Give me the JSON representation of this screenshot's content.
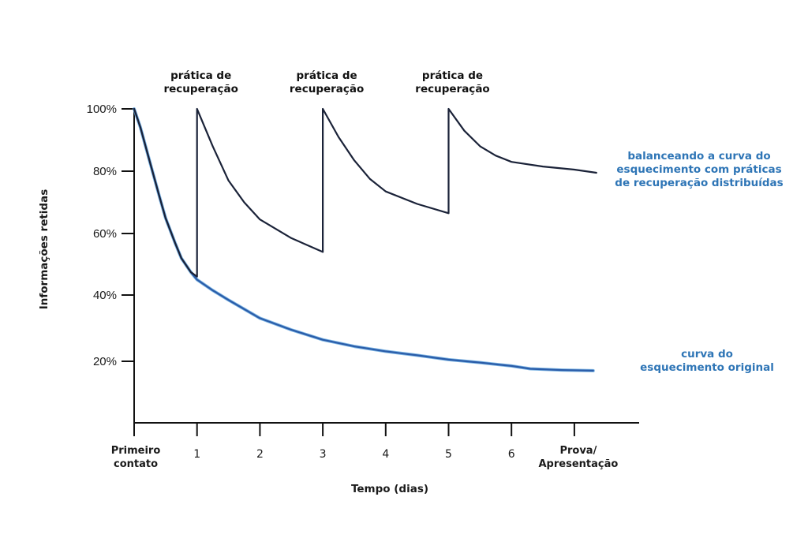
{
  "chart_data": {
    "type": "line",
    "title": "",
    "xlabel": "Tempo (dias)",
    "ylabel": "Informações retidas",
    "x_ticks": [
      {
        "value": 0,
        "label": [
          "Primeiro",
          "contato"
        ]
      },
      {
        "value": 1,
        "label": [
          "1"
        ]
      },
      {
        "value": 2,
        "label": [
          "2"
        ]
      },
      {
        "value": 3,
        "label": [
          "3"
        ]
      },
      {
        "value": 4,
        "label": [
          "4"
        ]
      },
      {
        "value": 5,
        "label": [
          "5"
        ]
      },
      {
        "value": 6,
        "label": [
          "6"
        ]
      },
      {
        "value": 7,
        "label": [
          "Prova/",
          "Apresentação"
        ]
      }
    ],
    "y_ticks": [
      {
        "value": 20,
        "label": "20%"
      },
      {
        "value": 40,
        "label": "40%"
      },
      {
        "value": 60,
        "label": "60%"
      },
      {
        "value": 80,
        "label": "80%"
      },
      {
        "value": 100,
        "label": "100%"
      }
    ],
    "xlim": [
      0,
      8
    ],
    "ylim": [
      0,
      100
    ],
    "grid": false,
    "series": [
      {
        "name": "curva do esquecimento original",
        "label_lines": [
          "curva do",
          "esquecimento original"
        ],
        "color": "#2a5ca8",
        "label_color": "#2e75b6",
        "points": [
          [
            0,
            100
          ],
          [
            0.1,
            94
          ],
          [
            0.25,
            83
          ],
          [
            0.4,
            72
          ],
          [
            0.5,
            65
          ],
          [
            0.65,
            57
          ],
          [
            0.75,
            52
          ],
          [
            0.9,
            47.5
          ],
          [
            1,
            45
          ],
          [
            1.25,
            41.5
          ],
          [
            1.5,
            38.5
          ],
          [
            2,
            33
          ],
          [
            2.5,
            29.5
          ],
          [
            3,
            26.5
          ],
          [
            3.5,
            24.5
          ],
          [
            4,
            23
          ],
          [
            4.5,
            21.8
          ],
          [
            5,
            20.5
          ],
          [
            5.5,
            19.6
          ],
          [
            6,
            18.5
          ],
          [
            6.3,
            17.6
          ],
          [
            6.8,
            17.2
          ],
          [
            7.3,
            17
          ]
        ]
      },
      {
        "name": "balanceando a curva do esquecimento com práticas de recuperação distribuídas",
        "label_lines": [
          "balanceando a curva do",
          "esquecimento com práticas",
          "de recuperação distribuídas"
        ],
        "color": "#1a2238",
        "label_color": "#2e75b6",
        "points": [
          [
            0,
            100
          ],
          [
            0.1,
            94
          ],
          [
            0.25,
            83
          ],
          [
            0.4,
            72
          ],
          [
            0.5,
            65
          ],
          [
            0.65,
            57
          ],
          [
            0.75,
            52
          ],
          [
            0.9,
            47.5
          ],
          [
            1,
            46
          ],
          [
            1,
            100
          ],
          [
            1.25,
            88
          ],
          [
            1.5,
            77
          ],
          [
            1.75,
            70
          ],
          [
            2,
            64.5
          ],
          [
            2.5,
            58.5
          ],
          [
            3,
            54
          ],
          [
            3,
            100
          ],
          [
            3.25,
            91
          ],
          [
            3.5,
            83.5
          ],
          [
            3.75,
            77.5
          ],
          [
            4,
            73.5
          ],
          [
            4.5,
            69.5
          ],
          [
            5,
            66.5
          ],
          [
            5,
            100
          ],
          [
            5.25,
            93
          ],
          [
            5.5,
            88
          ],
          [
            5.75,
            85
          ],
          [
            6,
            83
          ],
          [
            6.5,
            81.5
          ],
          [
            7,
            80.5
          ],
          [
            7.35,
            79.5
          ]
        ]
      }
    ],
    "annotations": [
      {
        "x": 1,
        "lines": [
          "prática de",
          "recuperação"
        ]
      },
      {
        "x": 3,
        "lines": [
          "prática de",
          "recuperação"
        ]
      },
      {
        "x": 5,
        "lines": [
          "prática de",
          "recuperação"
        ]
      }
    ]
  }
}
